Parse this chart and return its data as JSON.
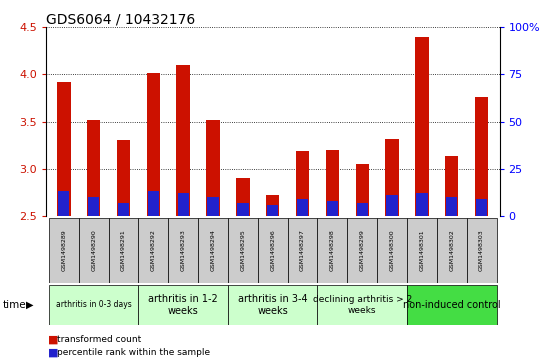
{
  "title": "GDS6064 / 10432176",
  "samples": [
    "GSM1498289",
    "GSM1498290",
    "GSM1498291",
    "GSM1498292",
    "GSM1498293",
    "GSM1498294",
    "GSM1498295",
    "GSM1498296",
    "GSM1498297",
    "GSM1498298",
    "GSM1498299",
    "GSM1498300",
    "GSM1498301",
    "GSM1498302",
    "GSM1498303"
  ],
  "transformed_count": [
    3.92,
    3.52,
    3.3,
    4.02,
    4.1,
    3.52,
    2.9,
    2.72,
    3.19,
    3.2,
    3.05,
    3.32,
    4.4,
    3.14,
    3.76
  ],
  "percentile_rank_pct": [
    13,
    10,
    7,
    13,
    12,
    10,
    7,
    6,
    9,
    8,
    7,
    11,
    12,
    10,
    9
  ],
  "ylim_left": [
    2.5,
    4.5
  ],
  "yticks_left": [
    2.5,
    3.0,
    3.5,
    4.0,
    4.5
  ],
  "yticks_right_pct": [
    0,
    25,
    50,
    75,
    100
  ],
  "ytick_labels_right": [
    "0",
    "25",
    "50",
    "75",
    "100%"
  ],
  "base": 2.5,
  "groups": [
    {
      "label": "arthritis in 0-3 days",
      "start": 0,
      "end": 3,
      "color": "#ccffcc",
      "fontsize": 5.5
    },
    {
      "label": "arthritis in 1-2\nweeks",
      "start": 3,
      "end": 6,
      "color": "#ccffcc",
      "fontsize": 7
    },
    {
      "label": "arthritis in 3-4\nweeks",
      "start": 6,
      "end": 9,
      "color": "#ccffcc",
      "fontsize": 7
    },
    {
      "label": "declining arthritis > 2\nweeks",
      "start": 9,
      "end": 12,
      "color": "#ccffcc",
      "fontsize": 6.5
    },
    {
      "label": "non-induced control",
      "start": 12,
      "end": 15,
      "color": "#44dd44",
      "fontsize": 7
    }
  ],
  "bar_color_red": "#cc1100",
  "bar_color_blue": "#2222cc",
  "bar_width": 0.45,
  "blue_bar_width": 0.38,
  "background_color": "#ffffff",
  "sample_cell_color": "#cccccc",
  "legend_red": "transformed count",
  "legend_blue": "percentile rank within the sample",
  "xlabel_time": "time",
  "title_fontsize": 10,
  "axis_fontsize": 8,
  "sample_fontsize": 4.5
}
